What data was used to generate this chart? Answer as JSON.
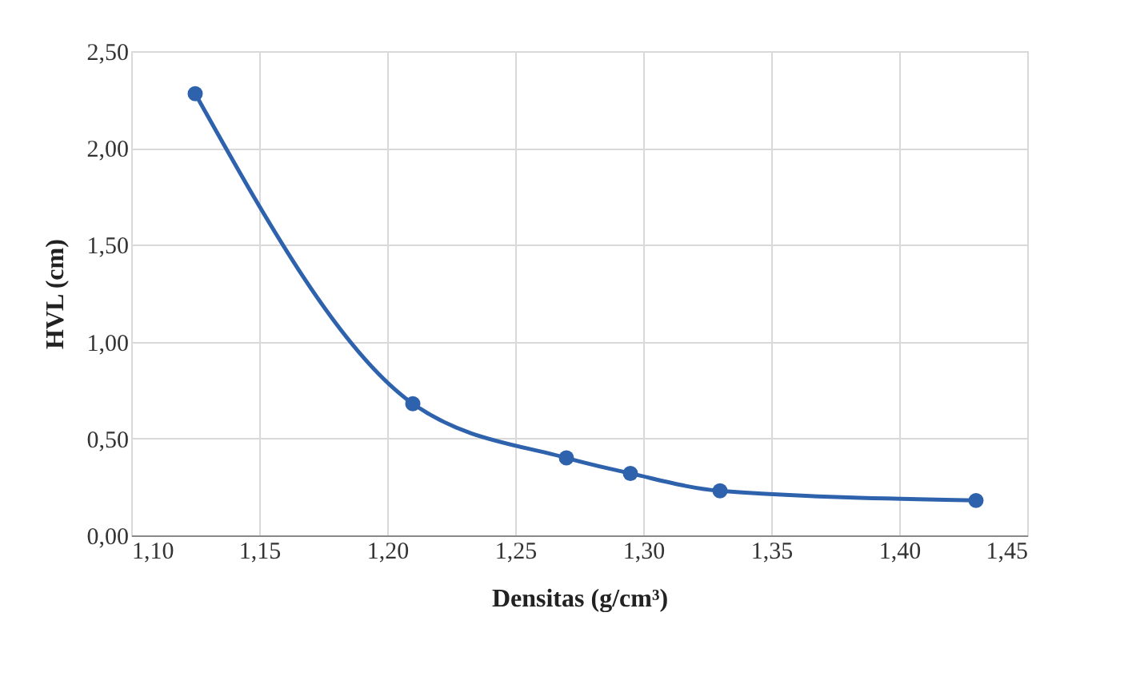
{
  "chart_data": {
    "type": "line",
    "xlabel": "Densitas (g/cm³)",
    "ylabel": "HVL (cm)",
    "x": [
      1.125,
      1.21,
      1.27,
      1.295,
      1.33,
      1.43
    ],
    "series": [
      {
        "color": "#2e62ad",
        "values": [
          2.28,
          0.68,
          0.4,
          0.32,
          0.23,
          0.18
        ]
      }
    ],
    "xlim": [
      1.1,
      1.45
    ],
    "ylim": [
      0,
      2.5
    ],
    "xticks": [
      {
        "value": 1.1,
        "label": "1,10"
      },
      {
        "value": 1.15,
        "label": "1,15"
      },
      {
        "value": 1.2,
        "label": "1,20"
      },
      {
        "value": 1.25,
        "label": "1,25"
      },
      {
        "value": 1.3,
        "label": "1,30"
      },
      {
        "value": 1.35,
        "label": "1,35"
      },
      {
        "value": 1.4,
        "label": "1,40"
      },
      {
        "value": 1.45,
        "label": "1,45"
      }
    ],
    "yticks": [
      {
        "value": 0,
        "label": "0,00"
      },
      {
        "value": 0.5,
        "label": "0,50"
      },
      {
        "value": 1,
        "label": "1,00"
      },
      {
        "value": 1.5,
        "label": "1,50"
      },
      {
        "value": 2,
        "label": "2,00"
      },
      {
        "value": 2.5,
        "label": "2,50"
      }
    ],
    "grid": true,
    "marker": "circle",
    "line_style": "solid"
  }
}
